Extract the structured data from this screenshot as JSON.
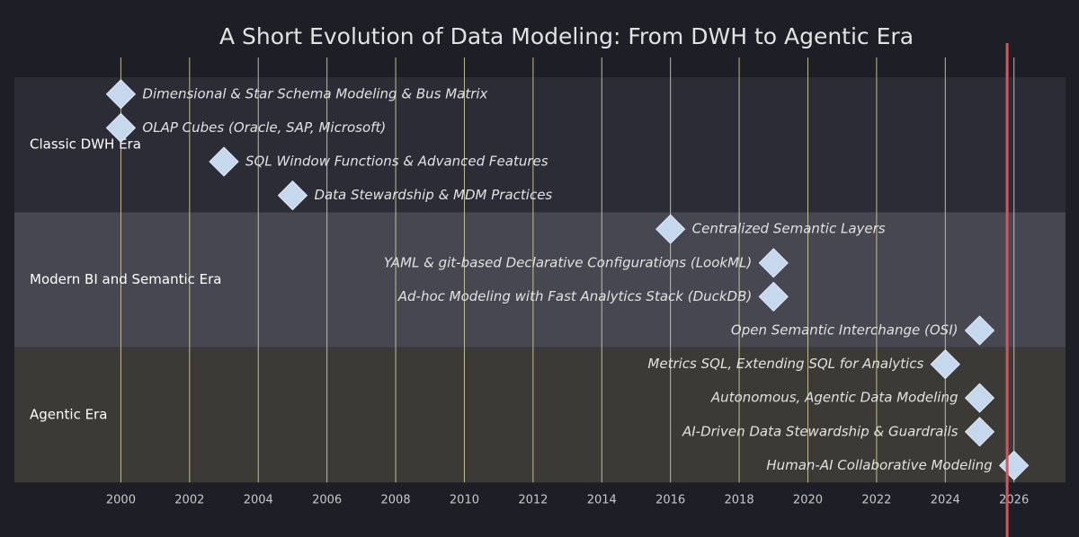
{
  "chart_data": {
    "type": "timeline",
    "title": "A Short Evolution of Data Modeling: From DWH to Agentic Era",
    "xlim": [
      1996.9,
      2027.5
    ],
    "xticks": [
      2000,
      2002,
      2004,
      2006,
      2008,
      2010,
      2012,
      2014,
      2016,
      2018,
      2020,
      2022,
      2024,
      2026
    ],
    "marker": 2025.8,
    "sections": [
      {
        "name": "Classic DWH Era",
        "tasks": [
          {
            "name": "Dimensional & Star Schema Modeling & Bus Matrix",
            "x": 2000
          },
          {
            "name": "OLAP Cubes (Oracle, SAP, Microsoft)",
            "x": 2000
          },
          {
            "name": "SQL Window Functions & Advanced Features",
            "x": 2003
          },
          {
            "name": "Data Stewardship & MDM Practices",
            "x": 2005
          }
        ]
      },
      {
        "name": "Modern BI and Semantic Era",
        "tasks": [
          {
            "name": "Centralized Semantic Layers",
            "x": 2016
          },
          {
            "name": "YAML & git-based Declarative Configurations (LookML)",
            "x": 2019
          },
          {
            "name": "Ad-hoc Modeling with Fast Analytics Stack (DuckDB)",
            "x": 2019
          },
          {
            "name": "Open Semantic Interchange (OSI)",
            "x": 2025
          }
        ]
      },
      {
        "name": "Agentic Era",
        "tasks": [
          {
            "name": "Metrics SQL, Extending SQL for Analytics",
            "x": 2024
          },
          {
            "name": "Autonomous, Agentic Data Modeling",
            "x": 2025
          },
          {
            "name": "AI-Driven Data Stewardship & Guardrails",
            "x": 2025
          },
          {
            "name": "Human-AI Collaborative Modeling",
            "x": 2026
          }
        ]
      }
    ]
  }
}
